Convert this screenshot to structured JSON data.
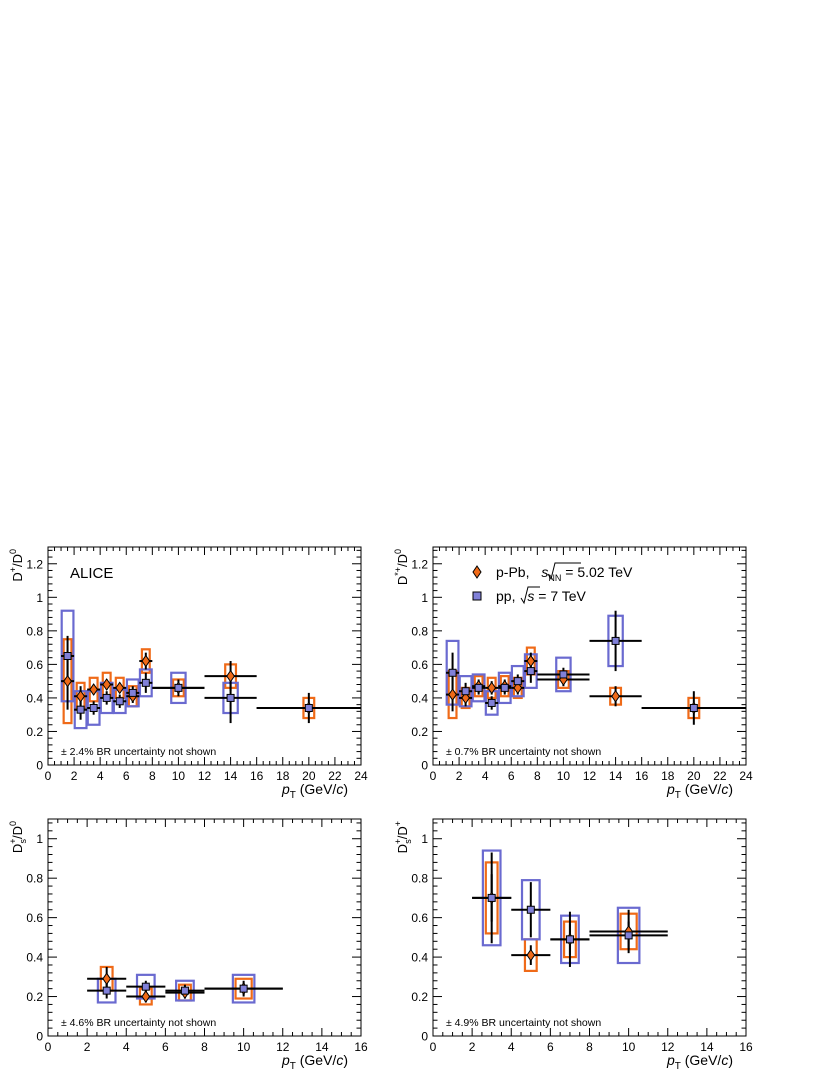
{
  "colors": {
    "ppb_fill": "#ef6a18",
    "ppb_box": "#ef6a18",
    "pp_fill": "#8080d8",
    "pp_box": "#6a6ad0",
    "stat": "#000000"
  },
  "legend": {
    "ppb_label_a": "p-Pb, ",
    "ppb_label_b": "s",
    "ppb_label_c": "NN",
    "ppb_label_d": " = 5.02 TeV",
    "pp_label_a": "pp, ",
    "pp_label_b": "s",
    "pp_label_c": " = 7 TeV"
  },
  "chart_data": [
    {
      "type": "scatter",
      "panel": "top-left",
      "ylabel_main": "D",
      "ylabel_sup": "+",
      "ylabel_tail": "/D",
      "ylabel_sup2": "0",
      "xlabel_p": "p",
      "xlabel_T": "T",
      "xlabel_unit_a": " (GeV/",
      "xlabel_unit_c": "c",
      "xlabel_unit_b": ")",
      "annotation": "ALICE",
      "br_note": "± 2.4% BR uncertainty not shown",
      "xlim": [
        0,
        24
      ],
      "ylim": [
        0,
        1.3
      ],
      "xticks": [
        0,
        2,
        4,
        6,
        8,
        10,
        12,
        14,
        16,
        18,
        20,
        22,
        24
      ],
      "yticks": [
        0,
        0.2,
        0.4,
        0.6,
        0.8,
        1,
        1.2
      ],
      "ytick_labels": [
        "0",
        "0.2",
        "0.4",
        "0.6",
        "0.8",
        "1",
        "1.2"
      ],
      "xtick_labels": [
        "0",
        "2",
        "4",
        "6",
        "8",
        "10",
        "12",
        "14",
        "16",
        "18",
        "20",
        "22",
        "24"
      ],
      "series": [
        {
          "name": "p-Pb, √sNN = 5.02 TeV",
          "x": [
            1.5,
            2.5,
            3.5,
            4.5,
            5.5,
            6.5,
            7.5,
            10,
            14,
            20
          ],
          "xerr": [
            0.5,
            0.5,
            0.5,
            0.5,
            0.5,
            0.5,
            0.5,
            2,
            2,
            4
          ],
          "y": [
            0.5,
            0.41,
            0.45,
            0.48,
            0.46,
            0.41,
            0.62,
            0.46,
            0.53,
            0.34
          ],
          "stat": [
            0.17,
            0.06,
            0.03,
            0.03,
            0.03,
            0.04,
            0.05,
            0.05,
            0.09,
            0.09
          ],
          "syst": [
            0.25,
            0.08,
            0.07,
            0.07,
            0.06,
            0.06,
            0.07,
            0.05,
            0.07,
            0.06
          ]
        },
        {
          "name": "pp, √s = 7 TeV",
          "x": [
            1.5,
            2.5,
            3.5,
            4.5,
            5.5,
            6.5,
            7.5,
            10,
            14,
            20
          ],
          "xerr": [
            0.5,
            0.5,
            0.5,
            0.5,
            0.5,
            0.5,
            0.5,
            2,
            2,
            4
          ],
          "y": [
            0.65,
            0.33,
            0.34,
            0.4,
            0.38,
            0.43,
            0.49,
            0.46,
            0.4,
            0.34
          ],
          "stat": [
            0.12,
            0.06,
            0.04,
            0.04,
            0.04,
            0.04,
            0.06,
            0.03,
            0.15,
            0.03
          ],
          "syst": [
            0.27,
            0.11,
            0.1,
            0.09,
            0.07,
            0.08,
            0.08,
            0.09,
            0.09,
            0
          ]
        }
      ]
    },
    {
      "type": "scatter",
      "panel": "top-right",
      "ylabel_main": "D",
      "ylabel_sup": "*+",
      "ylabel_tail": "/D",
      "ylabel_sup2": "0",
      "xlabel_p": "p",
      "xlabel_T": "T",
      "xlabel_unit_a": " (GeV/",
      "xlabel_unit_c": "c",
      "xlabel_unit_b": ")",
      "annotation": "",
      "br_note": "± 0.7% BR uncertainty not shown",
      "xlim": [
        0,
        24
      ],
      "ylim": [
        0,
        1.3
      ],
      "xticks": [
        0,
        2,
        4,
        6,
        8,
        10,
        12,
        14,
        16,
        18,
        20,
        22,
        24
      ],
      "yticks": [
        0,
        0.2,
        0.4,
        0.6,
        0.8,
        1,
        1.2
      ],
      "ytick_labels": [
        "0",
        "0.2",
        "0.4",
        "0.6",
        "0.8",
        "1",
        "1.2"
      ],
      "xtick_labels": [
        "0",
        "2",
        "4",
        "6",
        "8",
        "10",
        "12",
        "14",
        "16",
        "18",
        "20",
        "22",
        "24"
      ],
      "series": [
        {
          "name": "p-Pb, √sNN = 5.02 TeV",
          "x": [
            1.5,
            2.5,
            3.5,
            4.5,
            5.5,
            6.5,
            7.5,
            10,
            14,
            20
          ],
          "xerr": [
            0.5,
            0.5,
            0.5,
            0.5,
            0.5,
            0.5,
            0.5,
            2,
            2,
            4
          ],
          "y": [
            0.42,
            0.4,
            0.47,
            0.46,
            0.47,
            0.46,
            0.62,
            0.51,
            0.41,
            0.34
          ],
          "stat": [
            0.1,
            0.05,
            0.04,
            0.04,
            0.04,
            0.04,
            0.05,
            0.04,
            0.06,
            0.1
          ],
          "syst": [
            0.14,
            0.06,
            0.06,
            0.06,
            0.06,
            0.06,
            0.08,
            0.05,
            0.05,
            0.06
          ]
        },
        {
          "name": "pp, √s = 7 TeV",
          "x": [
            1.5,
            2.5,
            3.5,
            4.5,
            5.5,
            6.5,
            7.5,
            10,
            14,
            20
          ],
          "xerr": [
            0.5,
            0.5,
            0.5,
            0.5,
            0.5,
            0.5,
            0.5,
            2,
            2,
            4
          ],
          "y": [
            0.55,
            0.44,
            0.46,
            0.37,
            0.46,
            0.5,
            0.56,
            0.54,
            0.74,
            0.34
          ],
          "stat": [
            0.12,
            0.05,
            0.04,
            0.04,
            0.04,
            0.04,
            0.07,
            0.04,
            0.18,
            0.03
          ],
          "syst": [
            0.19,
            0.09,
            0.08,
            0.07,
            0.09,
            0.09,
            0.1,
            0.1,
            0.15,
            0
          ]
        }
      ]
    },
    {
      "type": "scatter",
      "panel": "bottom-left",
      "ylabel_main": "D",
      "ylabel_sub": "s",
      "ylabel_sup": "+",
      "ylabel_tail": "/D",
      "ylabel_sup2": "0",
      "xlabel_p": "p",
      "xlabel_T": "T",
      "xlabel_unit_a": " (GeV/",
      "xlabel_unit_c": "c",
      "xlabel_unit_b": ")",
      "annotation": "",
      "br_note": "± 4.6% BR uncertainty not shown",
      "xlim": [
        0,
        16
      ],
      "ylim": [
        0,
        1.1
      ],
      "xticks": [
        0,
        2,
        4,
        6,
        8,
        10,
        12,
        14,
        16
      ],
      "yticks": [
        0,
        0.2,
        0.4,
        0.6,
        0.8,
        1
      ],
      "ytick_labels": [
        "0",
        "0.2",
        "0.4",
        "0.6",
        "0.8",
        "1"
      ],
      "xtick_labels": [
        "0",
        "2",
        "4",
        "6",
        "8",
        "10",
        "12",
        "14",
        "16"
      ],
      "series": [
        {
          "name": "p-Pb, √sNN = 5.02 TeV",
          "x": [
            3,
            5,
            7,
            10
          ],
          "xerr": [
            1,
            1,
            1,
            2
          ],
          "y": [
            0.29,
            0.2,
            0.22,
            0.24
          ],
          "stat": [
            0.06,
            0.03,
            0.03,
            0.04
          ],
          "syst": [
            0.06,
            0.04,
            0.04,
            0.05
          ]
        },
        {
          "name": "pp, √s = 7 TeV",
          "x": [
            3,
            5,
            7,
            10
          ],
          "xerr": [
            1,
            1,
            1,
            2
          ],
          "y": [
            0.23,
            0.25,
            0.23,
            0.24
          ],
          "stat": [
            0.04,
            0.03,
            0.03,
            0.03
          ],
          "syst": [
            0.06,
            0.06,
            0.05,
            0.07
          ]
        }
      ]
    },
    {
      "type": "scatter",
      "panel": "bottom-right",
      "ylabel_main": "D",
      "ylabel_sub": "s",
      "ylabel_sup": "+",
      "ylabel_tail": "/D",
      "ylabel_sup2": "+",
      "xlabel_p": "p",
      "xlabel_T": "T",
      "xlabel_unit_a": " (GeV/",
      "xlabel_unit_c": "c",
      "xlabel_unit_b": ")",
      "annotation": "",
      "br_note": "± 4.9% BR uncertainty not shown",
      "xlim": [
        0,
        16
      ],
      "ylim": [
        0,
        1.1
      ],
      "xticks": [
        0,
        2,
        4,
        6,
        8,
        10,
        12,
        14,
        16
      ],
      "yticks": [
        0,
        0.2,
        0.4,
        0.6,
        0.8,
        1
      ],
      "ytick_labels": [
        "0",
        "0.2",
        "0.4",
        "0.6",
        "0.8",
        "1"
      ],
      "xtick_labels": [
        "0",
        "2",
        "4",
        "6",
        "8",
        "10",
        "12",
        "14",
        "16"
      ],
      "series": [
        {
          "name": "p-Pb, √sNN = 5.02 TeV",
          "x": [
            3,
            5,
            7,
            10
          ],
          "xerr": [
            1,
            1,
            1,
            2
          ],
          "y": [
            0.7,
            0.41,
            0.49,
            0.53
          ],
          "stat": [
            0.23,
            0.05,
            0.14,
            0.11
          ],
          "syst": [
            0.18,
            0.08,
            0.09,
            0.09
          ]
        },
        {
          "name": "pp, √s = 7 TeV",
          "x": [
            3,
            5,
            7,
            10
          ],
          "xerr": [
            1,
            1,
            1,
            2
          ],
          "y": [
            0.7,
            0.64,
            0.49,
            0.51
          ],
          "stat": [
            0.12,
            0.14,
            0.08,
            0.07
          ],
          "syst": [
            0.24,
            0.15,
            0.12,
            0.14
          ]
        }
      ]
    }
  ]
}
